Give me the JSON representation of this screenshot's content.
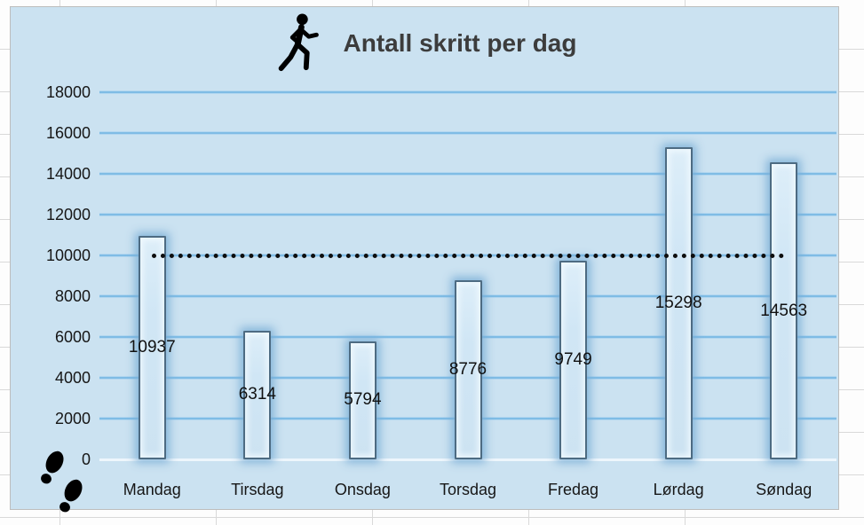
{
  "chart_data": {
    "type": "bar",
    "title": "Antall skritt per dag",
    "title_icon": "walking-person-icon",
    "corner_icon": "footprints-icon",
    "categories": [
      "Mandag",
      "Tirsdag",
      "Onsdag",
      "Torsdag",
      "Fredag",
      "Lørdag",
      "Søndag"
    ],
    "values": [
      10937,
      6314,
      5794,
      8776,
      9749,
      15298,
      14563
    ],
    "data_labels": [
      "10937",
      "6314",
      "5794",
      "8776",
      "9749",
      "15298",
      "14563"
    ],
    "y_ticks": [
      0,
      2000,
      4000,
      6000,
      8000,
      10000,
      12000,
      14000,
      16000,
      18000
    ],
    "ylim": [
      0,
      18000
    ],
    "xlabel": "",
    "ylabel": "",
    "grid": "horizontal",
    "legend_position": "none",
    "goal_line": {
      "value": 10000,
      "style": "dotted"
    },
    "colors": {
      "chart_background": "#cbe2f1",
      "gridline": "#7fbce5",
      "zero_line": "#eef6fc",
      "bar_border": "#4d6b82",
      "bar_fill": "#d0e6f5",
      "bar_glow": "#7aaed6",
      "goal_line": "#0e0e0e",
      "title_text": "#3c3c3c",
      "axis_text": "#161616",
      "icon": "#000000"
    }
  }
}
